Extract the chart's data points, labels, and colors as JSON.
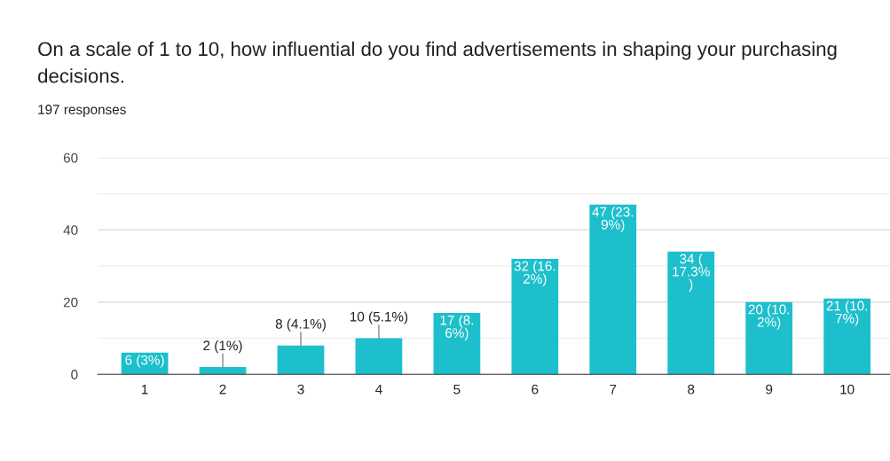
{
  "chart_data": {
    "type": "bar",
    "title": "On a scale of 1 to 10, how influential do you find advertisements in shaping your purchasing decisions.",
    "subtitle": "197 responses",
    "categories": [
      "1",
      "2",
      "3",
      "4",
      "5",
      "6",
      "7",
      "8",
      "9",
      "10"
    ],
    "values": [
      6,
      2,
      8,
      10,
      17,
      32,
      47,
      34,
      20,
      21
    ],
    "value_labels": [
      "6 (3%)",
      "2 (1%)",
      "8 (4.1%)",
      "10 (5.1%)",
      "17 (8.\n6%)",
      "32 (16.\n2%)",
      "47 (23.\n9%)",
      "34 (\n17.3%\n)",
      "20 (10.\n2%)",
      "21 (10.\n7%)"
    ],
    "color": "#1ebfcc",
    "ylim": [
      0,
      60
    ],
    "yticks": [
      0,
      {
        "value": 10,
        "label": null
      },
      20,
      {
        "value": 30,
        "label": null
      },
      40,
      {
        "value": 50,
        "label": null
      },
      60
    ],
    "grid": "y"
  }
}
